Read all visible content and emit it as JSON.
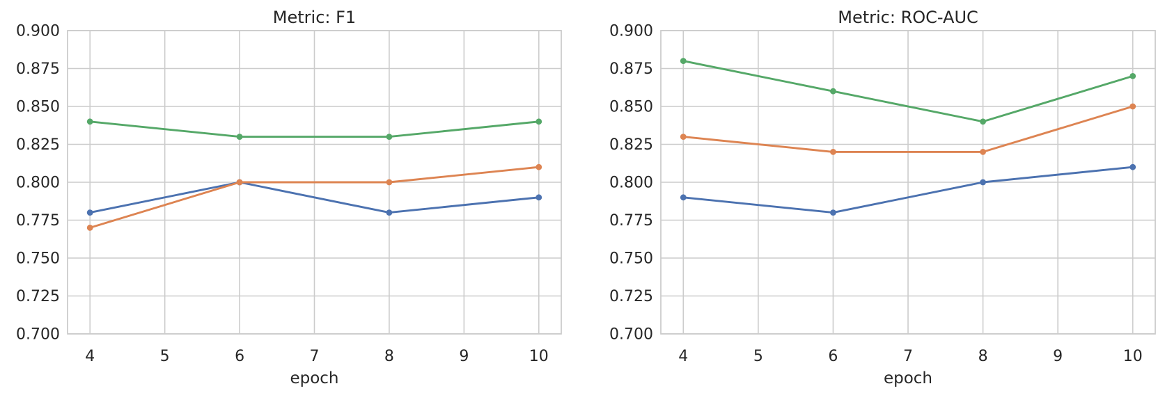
{
  "figure": {
    "background": "#ffffff"
  },
  "style": {
    "grid_color": "#cccccc",
    "spine_color": "#cccccc",
    "text_color": "#262626",
    "background": "#ffffff"
  },
  "chart_data": [
    {
      "type": "line",
      "title": "Metric: F1",
      "xlabel": "epoch",
      "ylabel": "",
      "x": [
        4,
        6,
        8,
        10
      ],
      "xticks": [
        4,
        5,
        6,
        7,
        8,
        9,
        10
      ],
      "yticks": [
        0.7,
        0.725,
        0.75,
        0.775,
        0.8,
        0.825,
        0.85,
        0.875,
        0.9
      ],
      "xlim": [
        3.7,
        10.3
      ],
      "ylim": [
        0.7,
        0.9
      ],
      "grid": true,
      "legend_position": "none",
      "series": [
        {
          "name": "blue",
          "color": "#4C72B0",
          "values": [
            0.78,
            0.8,
            0.78,
            0.79
          ]
        },
        {
          "name": "orange",
          "color": "#DD8452",
          "values": [
            0.77,
            0.8,
            0.8,
            0.81
          ]
        },
        {
          "name": "green",
          "color": "#55A868",
          "values": [
            0.84,
            0.83,
            0.83,
            0.84
          ]
        }
      ]
    },
    {
      "type": "line",
      "title": "Metric: ROC-AUC",
      "xlabel": "epoch",
      "ylabel": "",
      "x": [
        4,
        6,
        8,
        10
      ],
      "xticks": [
        4,
        5,
        6,
        7,
        8,
        9,
        10
      ],
      "yticks": [
        0.7,
        0.725,
        0.75,
        0.775,
        0.8,
        0.825,
        0.85,
        0.875,
        0.9
      ],
      "xlim": [
        3.7,
        10.3
      ],
      "ylim": [
        0.7,
        0.9
      ],
      "grid": true,
      "legend_position": "none",
      "series": [
        {
          "name": "blue",
          "color": "#4C72B0",
          "values": [
            0.79,
            0.78,
            0.8,
            0.81
          ]
        },
        {
          "name": "orange",
          "color": "#DD8452",
          "values": [
            0.83,
            0.82,
            0.82,
            0.85
          ]
        },
        {
          "name": "green",
          "color": "#55A868",
          "values": [
            0.88,
            0.86,
            0.84,
            0.87
          ]
        }
      ]
    }
  ]
}
